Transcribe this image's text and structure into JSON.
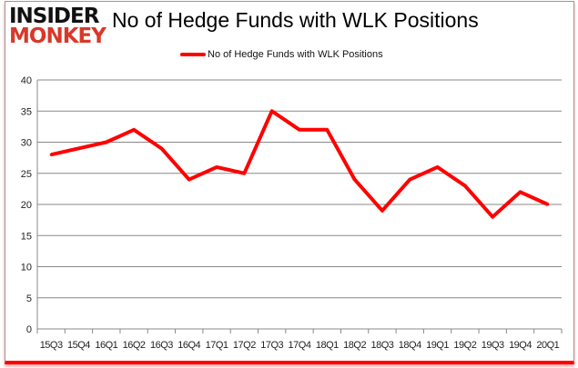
{
  "logo": {
    "line1": "INSIDER",
    "line2": "MONKEY"
  },
  "chart_data": {
    "type": "line",
    "title": "No of Hedge Funds with WLK Positions",
    "categories": [
      "15Q3",
      "15Q4",
      "16Q1",
      "16Q2",
      "16Q3",
      "16Q4",
      "17Q1",
      "17Q2",
      "17Q3",
      "17Q4",
      "18Q1",
      "18Q2",
      "18Q3",
      "18Q4",
      "19Q1",
      "19Q2",
      "19Q3",
      "19Q4",
      "20Q1"
    ],
    "series": [
      {
        "name": "No of Hedge Funds with WLK Positions",
        "color": "#ff0000",
        "values": [
          28,
          29,
          30,
          32,
          29,
          24,
          26,
          25,
          35,
          32,
          32,
          24,
          19,
          24,
          26,
          23,
          18,
          22,
          20
        ]
      }
    ],
    "ylim": [
      0,
      40
    ],
    "yticks": [
      0,
      5,
      10,
      15,
      20,
      25,
      30,
      35,
      40
    ],
    "grid": true,
    "legend": "top"
  }
}
